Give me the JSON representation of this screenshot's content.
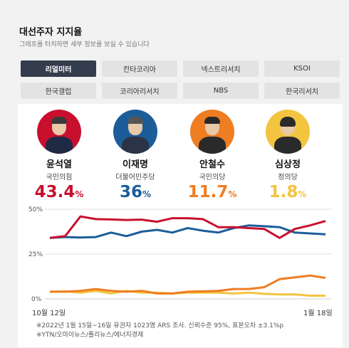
{
  "header": {
    "title": "대선주자 지지율",
    "subtitle": "그래프를 터치하면 세부 정보를 보실 수 있습니다"
  },
  "tabs": [
    {
      "label": "리얼미터",
      "active": true
    },
    {
      "label": "칸타코리아",
      "active": false
    },
    {
      "label": "넥스트리서치",
      "active": false
    },
    {
      "label": "KSOI",
      "active": false
    },
    {
      "label": "한국갤럽",
      "active": false
    },
    {
      "label": "코리아리서치",
      "active": false
    },
    {
      "label": "NBS",
      "active": false
    },
    {
      "label": "한국리서치",
      "active": false
    }
  ],
  "candidates": [
    {
      "name": "윤석열",
      "party": "국민의힘",
      "rate": "43.4",
      "unit": "%",
      "color": "#c8102e",
      "ring": "#c8102e",
      "icon": "candidate-photo-yoon"
    },
    {
      "name": "이재명",
      "party": "더불어민주당",
      "rate": "36",
      "unit": "%",
      "color": "#1c5d99",
      "ring": "#1c5d99",
      "icon": "candidate-photo-lee"
    },
    {
      "name": "안철수",
      "party": "국민의당",
      "rate": "11.7",
      "unit": "%",
      "color": "#ef7d22",
      "ring": "#ef7d22",
      "icon": "candidate-photo-ahn"
    },
    {
      "name": "심상정",
      "party": "정의당",
      "rate": "1.8",
      "unit": "%",
      "color": "#f3c440",
      "ring": "#f3c440",
      "icon": "candidate-photo-sim"
    }
  ],
  "chart_data": {
    "type": "line",
    "x_start": "10월 12일",
    "x_end": "1월 18일",
    "y_ticks": [
      "50%",
      "25%",
      "0%"
    ],
    "ylim": [
      0,
      50
    ],
    "grid": true,
    "series": [
      {
        "name": "윤석열",
        "color": "#c8102e",
        "values": [
          34,
          35,
          46,
          44.5,
          44.3,
          44,
          44.2,
          43,
          45,
          45,
          44.5,
          40,
          40,
          39.5,
          39,
          34,
          39,
          41,
          43.4
        ]
      },
      {
        "name": "이재명",
        "color": "#1c5d99",
        "values": [
          34,
          34.5,
          34.2,
          34.5,
          37,
          35,
          37.5,
          38.5,
          37,
          39.5,
          38,
          37,
          39.5,
          41,
          40.5,
          40,
          37,
          36.5,
          36
        ]
      },
      {
        "name": "안철수",
        "color": "#ef7d22",
        "values": [
          4,
          4,
          4.5,
          5.5,
          4.5,
          4,
          4.5,
          3,
          3,
          4,
          4.2,
          4.5,
          5.5,
          5.5,
          6.5,
          11,
          12,
          13,
          11.7
        ]
      },
      {
        "name": "심상정",
        "color": "#f3c440",
        "values": [
          4,
          4.2,
          3.5,
          4.5,
          3,
          4.5,
          3.5,
          3.5,
          3,
          3.5,
          3.5,
          3.5,
          3,
          3.5,
          2.8,
          2.5,
          2.5,
          1.8,
          1.8
        ]
      }
    ]
  },
  "footnotes": {
    "line1": "※2022년 1월 15일~16일 유권자 1023명 ARS 조사. 신뢰수준 95%, 표본오차 ±3.1%p",
    "line2": "※YTN/오마이뉴스/폴리뉴스/에너지경제"
  }
}
